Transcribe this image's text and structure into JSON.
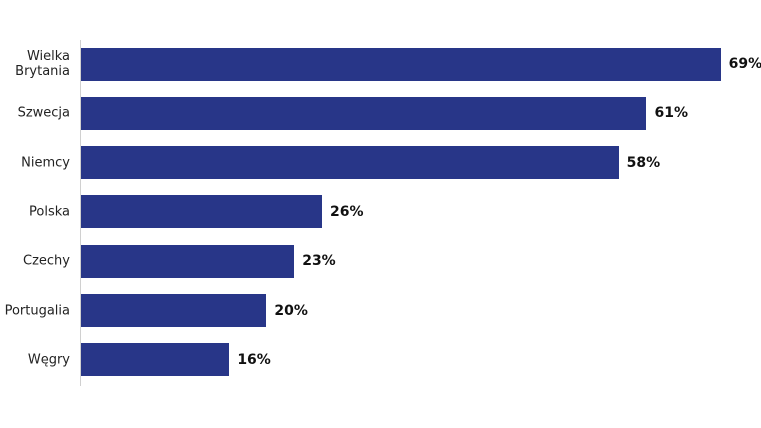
{
  "chart_data": {
    "type": "bar",
    "orientation": "horizontal",
    "categories": [
      "Wielka Brytania",
      "Szwecja",
      "Niemcy",
      "Polska",
      "Czechy",
      "Portugalia",
      "Węgry"
    ],
    "values": [
      69,
      61,
      58,
      26,
      23,
      20,
      16
    ],
    "value_labels": [
      "69%",
      "61%",
      "58%",
      "26%",
      "23%",
      "20%",
      "16%"
    ],
    "color": "#283688"
  }
}
